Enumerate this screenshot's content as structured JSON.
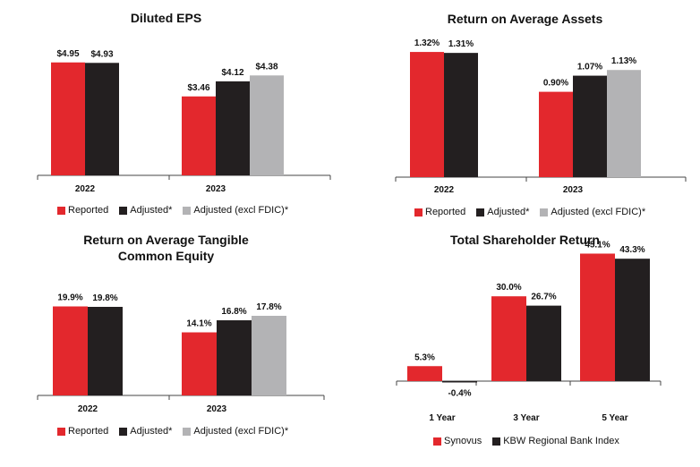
{
  "colors": {
    "reported": "#e3282d",
    "adjusted": "#231f20",
    "excl": "#b3b3b5",
    "axis": "#444444"
  },
  "chart_data": [
    {
      "id": "eps",
      "type": "bar",
      "title": "Diluted EPS",
      "categories": [
        "2022",
        "2023"
      ],
      "series": [
        {
          "name": "Reported",
          "values": [
            4.95,
            3.46
          ],
          "labels": [
            "$4.95",
            "$3.46"
          ]
        },
        {
          "name": "Adjusted*",
          "values": [
            4.93,
            4.12
          ],
          "labels": [
            "$4.93",
            "$4.12"
          ]
        },
        {
          "name": "Adjusted (excl FDIC)*",
          "values": [
            null,
            4.38
          ],
          "labels": [
            null,
            "$4.38"
          ]
        }
      ],
      "ylim": [
        0,
        6
      ]
    },
    {
      "id": "roaa",
      "type": "bar",
      "title": "Return on Average Assets",
      "categories": [
        "2022",
        "2023"
      ],
      "series": [
        {
          "name": "Reported",
          "values": [
            1.32,
            0.9
          ],
          "labels": [
            "1.32%",
            "0.90%"
          ]
        },
        {
          "name": "Adjusted*",
          "values": [
            1.31,
            1.07
          ],
          "labels": [
            "1.31%",
            "1.07%"
          ]
        },
        {
          "name": "Adjusted (excl FDIC)*",
          "values": [
            null,
            1.13
          ],
          "labels": [
            null,
            "1.13%"
          ]
        }
      ],
      "ylim": [
        0,
        1.6
      ]
    },
    {
      "id": "rotce",
      "type": "bar",
      "title": "Return on Average Tangible Common Equity",
      "title_lines": [
        "Return on Average Tangible",
        "Common Equity"
      ],
      "categories": [
        "2022",
        "2023"
      ],
      "series": [
        {
          "name": "Reported",
          "values": [
            19.9,
            14.1
          ],
          "labels": [
            "19.9%",
            "14.1%"
          ]
        },
        {
          "name": "Adjusted*",
          "values": [
            19.8,
            16.8
          ],
          "labels": [
            "19.8%",
            "16.8%"
          ]
        },
        {
          "name": "Adjusted (excl FDIC)*",
          "values": [
            null,
            17.8
          ],
          "labels": [
            null,
            "17.8%"
          ]
        }
      ],
      "ylim": [
        0,
        25
      ]
    },
    {
      "id": "tsr",
      "type": "bar",
      "title": "Total Shareholder Return",
      "categories": [
        "1 Year",
        "3 Year",
        "5 Year"
      ],
      "series": [
        {
          "name": "Synovus",
          "values": [
            5.3,
            30.0,
            45.1
          ],
          "labels": [
            "5.3%",
            "30.0%",
            "45.1%"
          ]
        },
        {
          "name": "KBW Regional Bank Index",
          "values": [
            -0.4,
            26.7,
            43.3
          ],
          "labels": [
            "-0.4%",
            "26.7%",
            "43.3%"
          ]
        }
      ],
      "ylim": [
        -5,
        50
      ]
    }
  ]
}
